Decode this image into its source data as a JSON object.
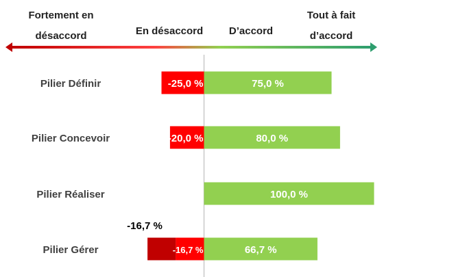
{
  "chart_data": {
    "type": "bar",
    "orientation": "horizontal",
    "stacked": "diverging",
    "scale_labels": [
      {
        "text": "Fortement en désaccord",
        "lines": [
          "Fortement en",
          "désaccord"
        ]
      },
      {
        "text": "En désaccord",
        "lines": [
          "En désaccord"
        ]
      },
      {
        "text": "D'accord",
        "lines": [
          "D’accord"
        ]
      },
      {
        "text": "Tout à fait d'accord",
        "lines": [
          "Tout à fait",
          "d’accord"
        ]
      }
    ],
    "categories": [
      "Pilier Définir",
      "Pilier Concevoir",
      "Pilier Réaliser",
      "Pilier Gérer"
    ],
    "series": [
      {
        "key": "strongly_disagree",
        "values": [
          0,
          0,
          0,
          0
        ],
        "value_labels": [
          "",
          "",
          "",
          ""
        ],
        "color": "#c00000"
      },
      {
        "key": "disagree",
        "values": [
          -25.0,
          -20.0,
          0,
          -16.7
        ],
        "value_labels": [
          "-25,0 %",
          "-20,0 %",
          "",
          "-16,7 %"
        ],
        "color": "#ff0000"
      },
      {
        "key": "agree",
        "values": [
          75.0,
          80.0,
          100.0,
          66.7
        ],
        "value_labels": [
          "75,0 %",
          "80,0 %",
          "100,0 %",
          "66,7 %"
        ],
        "color": "#92d050"
      }
    ],
    "annotations": [
      {
        "category": "Pilier Gérer",
        "text": "-16,7 %"
      }
    ],
    "xlim": [
      -33.4,
      100
    ],
    "arrow_gradient": [
      "#c00000",
      "#ff4040",
      "#92d050",
      "#2e9e6e"
    ]
  }
}
